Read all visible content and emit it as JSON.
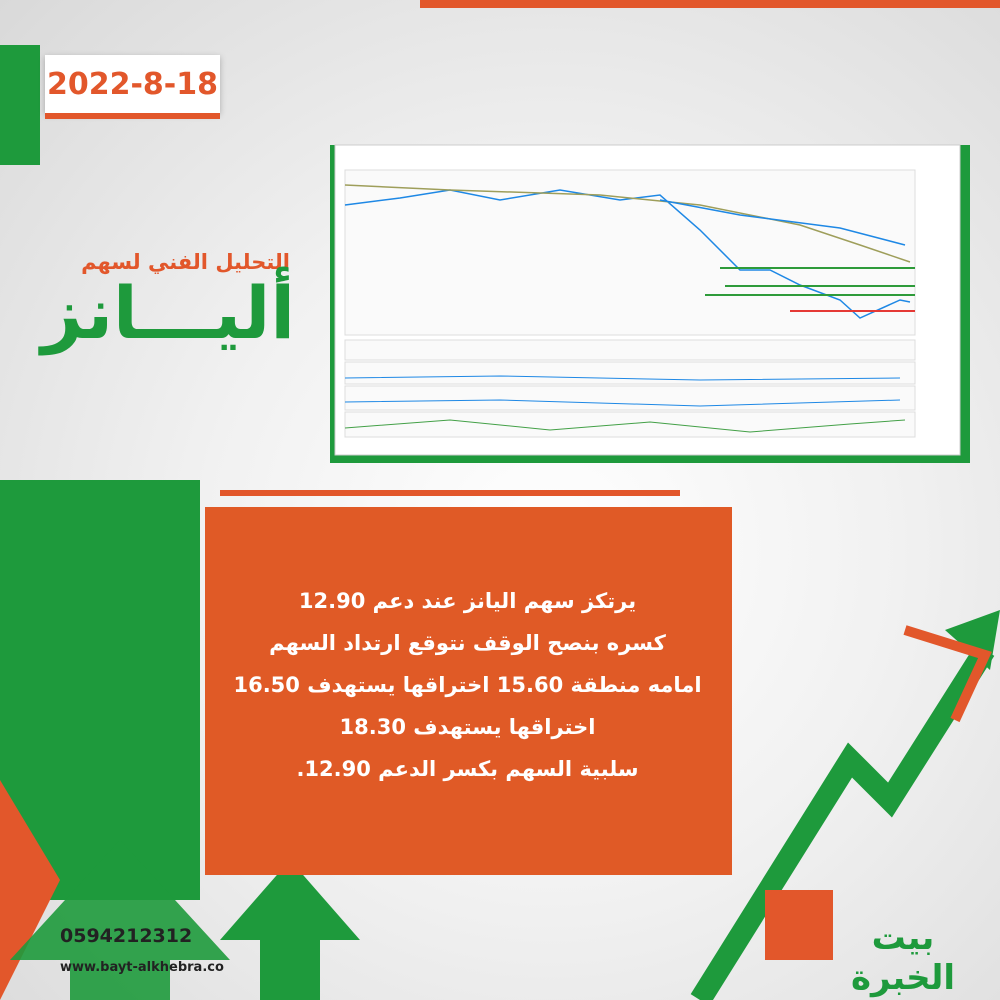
{
  "date": "2022-8-18",
  "subtitle": "التحليل الفني لسهم",
  "title": "أليـــانز",
  "analysis": [
    "يرتكز سهم اليانز عند دعم 12.90",
    "كسره بنصح الوقف نتوقع ارتداد السهم",
    "امامه منطقة 15.60 اختراقها يستهدف 16.50",
    "اختراقها يستهدف 18.30",
    "سلبية السهم بكسر الدعم 12.90."
  ],
  "contact": {
    "phone": "0594212312",
    "website": "www.bayt-alkhebra.co"
  },
  "logo": "بيت الخبرة"
}
